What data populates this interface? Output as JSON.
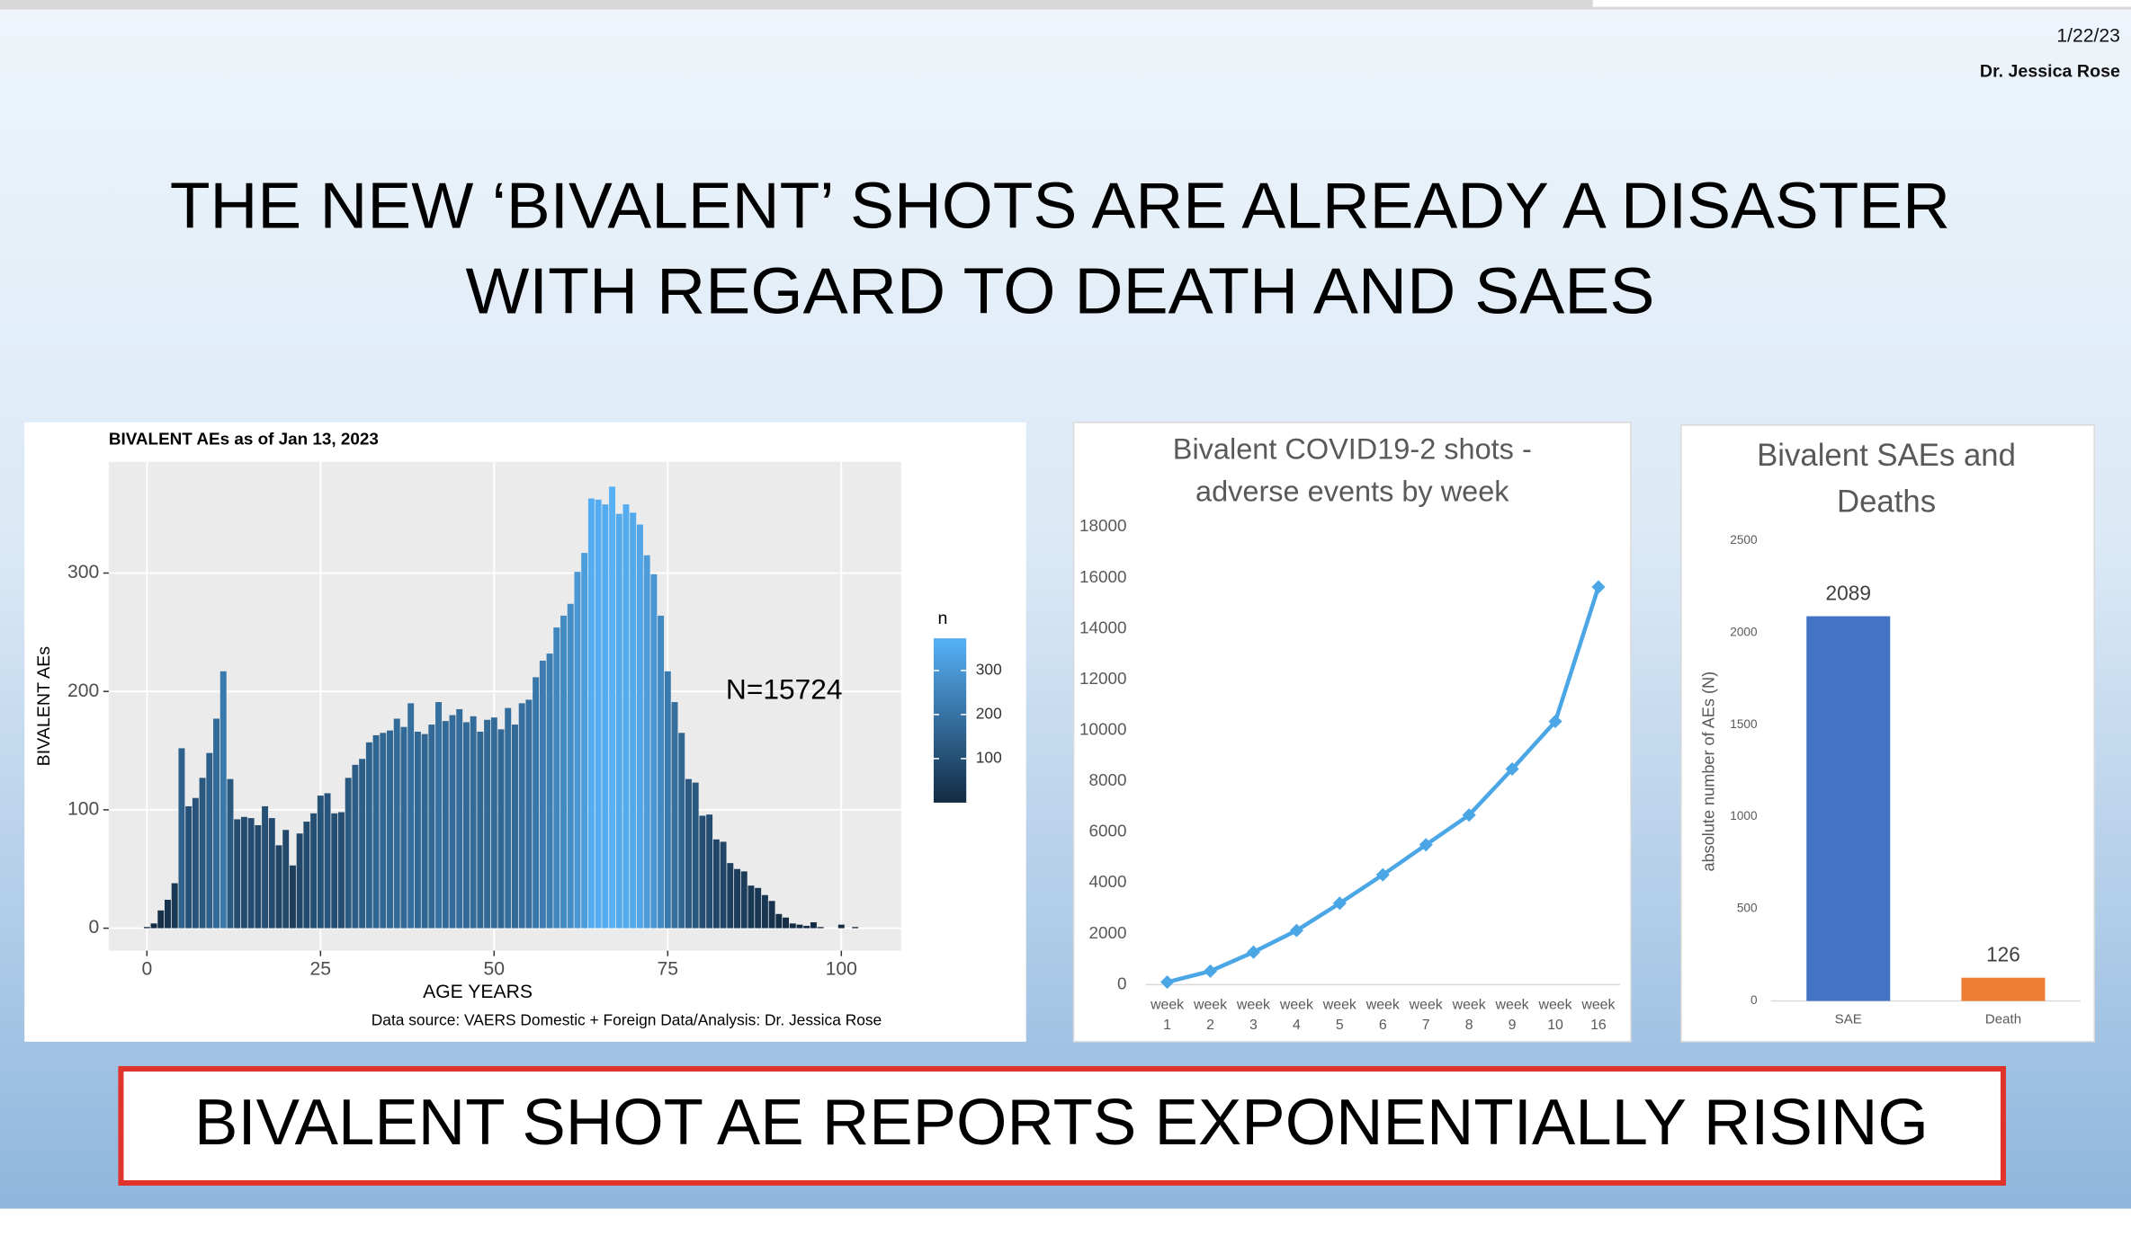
{
  "slide": {
    "date": "1/22/23",
    "author": "Dr. Jessica Rose",
    "title_lines": [
      "THE NEW ‘BIVALENT’ SHOTS ARE ALREADY A DISASTER",
      "WITH REGARD TO DEATH AND SAES"
    ],
    "banner": "BIVALENT SHOT AE REPORTS EXPONENTIALLY RISING"
  },
  "chart_data": [
    {
      "type": "bar",
      "title": "BIVALENT AEs as of Jan 13, 2023",
      "x_label": "AGE YEARS",
      "y_label": "BIVALENT AEs",
      "x": [
        0,
        1,
        2,
        3,
        4,
        5,
        6,
        7,
        8,
        9,
        10,
        11,
        12,
        13,
        14,
        15,
        16,
        17,
        18,
        19,
        20,
        21,
        22,
        23,
        24,
        25,
        26,
        27,
        28,
        29,
        30,
        31,
        32,
        33,
        34,
        35,
        36,
        37,
        38,
        39,
        40,
        41,
        42,
        43,
        44,
        45,
        46,
        47,
        48,
        49,
        50,
        51,
        52,
        53,
        54,
        55,
        56,
        57,
        58,
        59,
        60,
        61,
        62,
        63,
        64,
        65,
        66,
        67,
        68,
        69,
        70,
        71,
        72,
        73,
        74,
        75,
        76,
        77,
        78,
        79,
        80,
        81,
        82,
        83,
        84,
        85,
        86,
        87,
        88,
        89,
        90,
        91,
        92,
        93,
        94,
        95,
        96,
        97,
        98,
        99,
        100,
        101,
        102,
        103
      ],
      "values": [
        1,
        4,
        15,
        24,
        38,
        152,
        103,
        110,
        127,
        148,
        177,
        217,
        126,
        92,
        94,
        93,
        87,
        103,
        93,
        70,
        83,
        53,
        80,
        90,
        97,
        112,
        114,
        97,
        98,
        127,
        138,
        143,
        157,
        163,
        165,
        167,
        177,
        170,
        190,
        166,
        164,
        172,
        191,
        175,
        180,
        185,
        174,
        179,
        166,
        176,
        178,
        168,
        186,
        172,
        190,
        193,
        212,
        226,
        232,
        254,
        264,
        274,
        301,
        317,
        363,
        362,
        358,
        373,
        350,
        358,
        351,
        341,
        315,
        299,
        264,
        217,
        191,
        165,
        126,
        123,
        95,
        96,
        75,
        73,
        55,
        50,
        48,
        36,
        34,
        28,
        23,
        12,
        9,
        4,
        3,
        2,
        5,
        1,
        0,
        0,
        3,
        0,
        1,
        0
      ],
      "xlim": [
        -5.5,
        108.6
      ],
      "ylim": [
        -19,
        394
      ],
      "xticks": [
        0,
        25,
        50,
        75,
        100
      ],
      "yticks": [
        0,
        100,
        200,
        300
      ],
      "grid": true,
      "annotation": "N=15724",
      "source": "Data source: VAERS Domestic + Foreign Data/Analysis: Dr. Jessica Rose",
      "legend": {
        "title": "n",
        "ticks": [
          100,
          200,
          300
        ]
      },
      "color_low": "#132B43",
      "color_high": "#56B1F7"
    },
    {
      "type": "line",
      "title": "Bivalent COVID19-2 shots - adverse events by week",
      "categories": [
        "week 1",
        "week 2",
        "week 3",
        "week 4",
        "week 5",
        "week 6",
        "week 7",
        "week 8",
        "week 9",
        "week 10",
        "week 16"
      ],
      "values": [
        100,
        530,
        1280,
        2130,
        3200,
        4320,
        5500,
        6670,
        8480,
        10350,
        15640
      ],
      "ylim": [
        0,
        18000
      ],
      "yticks": [
        0,
        2000,
        4000,
        6000,
        8000,
        10000,
        12000,
        14000,
        16000,
        18000
      ],
      "grid": false,
      "color": "#4ba6e6"
    },
    {
      "type": "bar",
      "title": "Bivalent SAEs and Deaths",
      "y_label": "absolute number of AEs (N)",
      "categories": [
        "SAE",
        "Death"
      ],
      "values": [
        2089,
        126
      ],
      "colors": [
        "#4472c4",
        "#ed7d31"
      ],
      "ylim": [
        0,
        2500
      ],
      "yticks": [
        0,
        500,
        1000,
        1500,
        2000,
        2500
      ],
      "grid": false
    }
  ]
}
